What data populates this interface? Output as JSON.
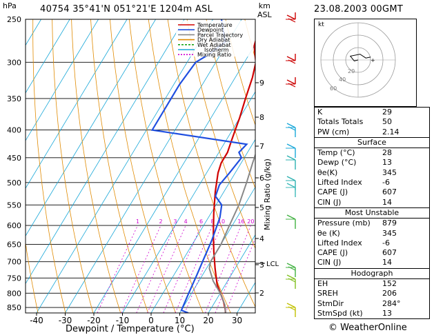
{
  "header": {
    "station": "40754  35°41'N  051°21'E  1204m  ASL",
    "datetime": "23.08.2003  00GMT",
    "footer": "© WeatherOnline"
  },
  "chart_data": {
    "type": "line",
    "title": "",
    "xlabel": "Dewpoint / Temperature (°C)",
    "ylabel": "hPa",
    "xlim": [
      -45,
      37
    ],
    "ylim": [
      870,
      250
    ],
    "x_ticks": [
      "-40",
      "-30",
      "-20",
      "-10",
      "0",
      "10",
      "20",
      "30"
    ],
    "pressure_ticks": [
      "250",
      "300",
      "350",
      "400",
      "450",
      "500",
      "550",
      "600",
      "650",
      "700",
      "750",
      "800",
      "850"
    ],
    "km_axis": {
      "label": "km\nASL",
      "ticks": [
        "9",
        "8",
        "7",
        "6",
        "5",
        "4",
        "3",
        "2"
      ],
      "lcl_label": "LCL"
    },
    "mixing_ratio_axis": {
      "label": "Mixing Ratio (g/kg)",
      "values": [
        "1",
        "2",
        "3",
        "4",
        "6",
        "8",
        "10",
        "16",
        "20",
        "25"
      ]
    },
    "legend": {
      "placement": "top-left",
      "items": [
        {
          "label": "Temperature",
          "color": "#d00000"
        },
        {
          "label": "Dewpoint",
          "color": "#1f4fe0"
        },
        {
          "label": "Parcel Trajectory",
          "color": "#888888"
        },
        {
          "label": "Dry Adiabat",
          "color": "#e08a00"
        },
        {
          "label": "Wet Adiabat",
          "color": "#18a518"
        },
        {
          "label": "Isotherm",
          "color": "#18a7d8"
        },
        {
          "label": "Mixing Ratio",
          "color": "#d000d0"
        }
      ]
    },
    "series": [
      {
        "name": "Temperature",
        "color": "#d00000",
        "points": [
          [
            26,
            870
          ],
          [
            25,
            855
          ],
          [
            23,
            830
          ],
          [
            17,
            770
          ],
          [
            13,
            720
          ],
          [
            9,
            670
          ],
          [
            5,
            620
          ],
          [
            1,
            570
          ],
          [
            -3,
            520
          ],
          [
            -6,
            480
          ],
          [
            -7,
            460
          ],
          [
            -7,
            440
          ],
          [
            -8,
            420
          ],
          [
            -9,
            400
          ],
          [
            -10,
            380
          ],
          [
            -12,
            350
          ],
          [
            -14,
            320
          ],
          [
            -16,
            300
          ],
          [
            -18,
            290
          ],
          [
            -20,
            280
          ],
          [
            -22,
            260
          ],
          [
            -22,
            250
          ]
        ]
      },
      {
        "name": "Dewpoint",
        "color": "#1f4fe0",
        "points": [
          [
            13,
            870
          ],
          [
            10,
            860
          ],
          [
            9,
            800
          ],
          [
            8,
            740
          ],
          [
            7,
            690
          ],
          [
            6,
            640
          ],
          [
            4,
            580
          ],
          [
            2,
            550
          ],
          [
            -2,
            530
          ],
          [
            -3,
            505
          ],
          [
            -2,
            480
          ],
          [
            -1,
            450
          ],
          [
            -3,
            440
          ],
          [
            -2,
            425
          ],
          [
            -38,
            400
          ],
          [
            -38,
            360
          ],
          [
            -38,
            330
          ],
          [
            -37,
            300
          ],
          [
            -34,
            290
          ],
          [
            -31,
            275
          ],
          [
            -37,
            250
          ]
        ]
      },
      {
        "name": "Parcel Trajectory",
        "color": "#888888",
        "points": [
          [
            26,
            870
          ],
          [
            24,
            840
          ],
          [
            20,
            800
          ],
          [
            15,
            760
          ],
          [
            11,
            720
          ],
          [
            10,
            700
          ],
          [
            10,
            650
          ],
          [
            9,
            600
          ],
          [
            8,
            550
          ],
          [
            6,
            500
          ],
          [
            4,
            460
          ],
          [
            2,
            420
          ],
          [
            0,
            390
          ],
          [
            -3,
            360
          ],
          [
            -7,
            330
          ],
          [
            -11,
            300
          ],
          [
            -15,
            280
          ],
          [
            -20,
            260
          ],
          [
            -22,
            250
          ]
        ]
      }
    ]
  },
  "hodograph": {
    "label": "kt",
    "ring_labels": [
      "20",
      "40",
      "60"
    ],
    "points": [
      [
        0,
        0
      ],
      [
        -4,
        1
      ],
      [
        -8,
        -4
      ],
      [
        2,
        -6
      ],
      [
        8,
        -2
      ],
      [
        13,
        -3
      ]
    ]
  },
  "indices": {
    "top": [
      {
        "label": "K",
        "value": "29"
      },
      {
        "label": "Totals Totals",
        "value": "50"
      },
      {
        "label": "PW (cm)",
        "value": "2.14"
      }
    ],
    "surface": {
      "title": "Surface",
      "rows": [
        {
          "label": "Temp (°C)",
          "value": "28"
        },
        {
          "label": "Dewp (°C)",
          "value": "13"
        },
        {
          "label": "θe(K)",
          "value": "345"
        },
        {
          "label": "Lifted Index",
          "value": "-6"
        },
        {
          "label": "CAPE (J)",
          "value": "607"
        },
        {
          "label": "CIN (J)",
          "value": "14"
        }
      ]
    },
    "most_unstable": {
      "title": "Most Unstable",
      "rows": [
        {
          "label": "Pressure (mb)",
          "value": "879"
        },
        {
          "label": "θe (K)",
          "value": "345"
        },
        {
          "label": "Lifted Index",
          "value": "-6"
        },
        {
          "label": "CAPE (J)",
          "value": "607"
        },
        {
          "label": "CIN (J)",
          "value": "14"
        }
      ]
    },
    "hodograph": {
      "title": "Hodograph",
      "rows": [
        {
          "label": "EH",
          "value": "152"
        },
        {
          "label": "SREH",
          "value": "206"
        },
        {
          "label": "StmDir",
          "value": "284°"
        },
        {
          "label": "StmSpd (kt)",
          "value": "13"
        }
      ]
    }
  },
  "colors": {
    "temperature": "#d00000",
    "dewpoint": "#1f4fe0",
    "parcel": "#888888",
    "dry_adiabat": "#e08a00",
    "wet_adiabat": "#18a518",
    "isotherm": "#18a7d8",
    "mixing_ratio": "#d000d0",
    "wind_barbs": [
      "#cc0000",
      "#cc0000",
      "#cc0000",
      "#18a7d8",
      "#18a7d8",
      "#2cb0b0",
      "#2cb0b0",
      "#3cb8b8",
      "#40b040",
      "#40b040",
      "#80c020",
      "#c0c000"
    ]
  }
}
